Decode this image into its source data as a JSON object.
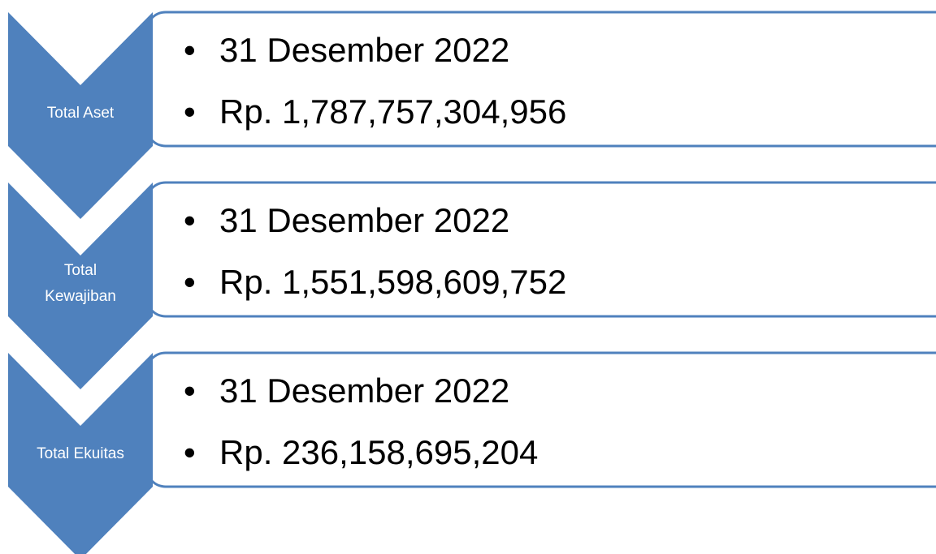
{
  "items": [
    {
      "label_lines": [
        "Total Aset"
      ],
      "bullets": [
        "31 Desember 2022",
        "Rp. 1,787,757,304,956"
      ]
    },
    {
      "label_lines": [
        "Total",
        "Kewajiban"
      ],
      "bullets": [
        "31 Desember 2022",
        "Rp. 1,551,598,609,752"
      ]
    },
    {
      "label_lines": [
        "Total Ekuitas"
      ],
      "bullets": [
        "31 Desember 2022",
        "Rp. 236,158,695,204"
      ]
    }
  ]
}
